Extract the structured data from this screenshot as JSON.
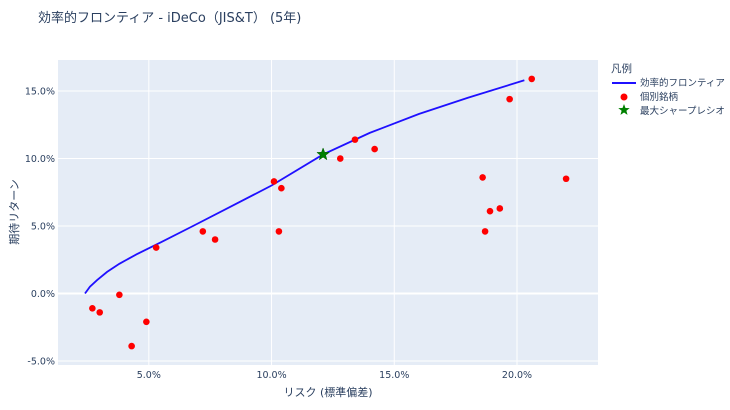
{
  "chart_data": {
    "type": "scatter",
    "title": "効率的フロンティア - iDeCo（JIS&T） (5年)",
    "xlabel": "リスク (標準偏差)",
    "ylabel": "期待リターン",
    "xlim": [
      1.3,
      23.3
    ],
    "ylim": [
      -5.3,
      17.3
    ],
    "x_ticks": [
      5,
      10,
      15,
      20
    ],
    "x_tick_labels": [
      "5.0%",
      "10.0%",
      "15.0%",
      "20.0%"
    ],
    "y_ticks": [
      -5,
      0,
      5,
      10,
      15
    ],
    "y_tick_labels": [
      "-5.0%",
      "0.0%",
      "5.0%",
      "10.0%",
      "15.0%"
    ],
    "grid": true,
    "legend": {
      "title": "凡例",
      "placement": "right",
      "entries": [
        "効率的フロンティア",
        "個別銘柄",
        "最大シャープレシオ"
      ]
    },
    "colors": {
      "frontier": "#1f10ff",
      "stocks": "#ff0000",
      "max_sharpe": "#008000",
      "plot_bg": "#e5ecf6",
      "grid": "#ffffff",
      "text": "#2a3f5f"
    },
    "series": [
      {
        "name": "効率的フロンティア",
        "type": "line",
        "x": [
          2.4,
          2.6,
          2.9,
          3.3,
          3.8,
          4.5,
          5.5,
          6.8,
          8.3,
          10.0,
          12.1,
          14.0,
          16.0,
          18.0,
          20.3
        ],
        "y": [
          0.0,
          0.5,
          1.0,
          1.6,
          2.2,
          2.9,
          3.8,
          5.0,
          6.4,
          8.0,
          10.3,
          11.9,
          13.3,
          14.5,
          15.8
        ]
      },
      {
        "name": "個別銘柄",
        "type": "scatter",
        "x": [
          2.7,
          3.0,
          3.8,
          4.3,
          4.9,
          5.3,
          7.2,
          7.7,
          10.1,
          10.3,
          10.4,
          12.8,
          13.4,
          14.2,
          18.6,
          18.7,
          18.9,
          19.3,
          19.7,
          20.6,
          22.0
        ],
        "y": [
          -1.1,
          -1.4,
          -0.1,
          -3.9,
          -2.1,
          3.4,
          4.6,
          4.0,
          8.3,
          4.6,
          7.8,
          10.0,
          11.4,
          10.7,
          8.6,
          4.6,
          6.1,
          6.3,
          14.4,
          15.9,
          8.5
        ]
      },
      {
        "name": "最大シャープレシオ",
        "type": "marker",
        "x": [
          12.1
        ],
        "y": [
          10.3
        ]
      }
    ]
  }
}
